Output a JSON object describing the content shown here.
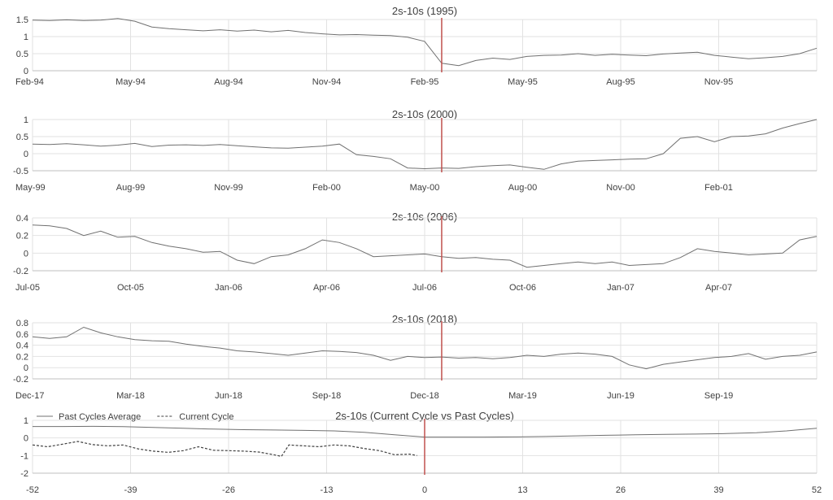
{
  "colors": {
    "series": "#707070",
    "current": "#404040",
    "grid": "#e2e2e2",
    "axis": "#bfbfbf",
    "marker": "#c0504d",
    "text": "#404040"
  },
  "chart_data": [
    {
      "type": "line",
      "title": "2s-10s (1995)",
      "x_ticks": [
        "Feb-94",
        "May-94",
        "Aug-94",
        "Nov-94",
        "Feb-95",
        "May-95",
        "Aug-95",
        "Nov-95"
      ],
      "x_range": [
        0,
        23
      ],
      "ylim": [
        0,
        1.5
      ],
      "y_ticks": [
        "0",
        "0.5",
        "1",
        "1.5"
      ],
      "y_tick_values": [
        0,
        0.5,
        1,
        1.5
      ],
      "grid": true,
      "marker_x": 12,
      "series": [
        {
          "x": [
            0,
            0.5,
            1,
            1.5,
            2,
            2.5,
            3,
            3.5,
            4,
            4.5,
            5,
            5.5,
            6,
            6.5,
            7,
            7.5,
            8,
            8.5,
            9,
            9.5,
            10,
            10.5,
            11,
            11.5,
            12,
            12.5,
            13,
            13.5,
            14,
            14.5,
            15,
            15.5,
            16,
            16.5,
            17,
            17.5,
            18,
            18.5,
            19,
            19.5,
            20,
            20.5,
            21,
            21.5,
            22,
            22.5,
            23
          ],
          "y": [
            1.48,
            1.47,
            1.49,
            1.47,
            1.48,
            1.53,
            1.45,
            1.28,
            1.23,
            1.2,
            1.17,
            1.2,
            1.16,
            1.19,
            1.14,
            1.18,
            1.12,
            1.08,
            1.05,
            1.06,
            1.04,
            1.03,
            0.98,
            0.86,
            0.22,
            0.15,
            0.3,
            0.37,
            0.33,
            0.42,
            0.45,
            0.46,
            0.5,
            0.45,
            0.48,
            0.46,
            0.44,
            0.49,
            0.52,
            0.54,
            0.45,
            0.4,
            0.35,
            0.38,
            0.42,
            0.5,
            0.66
          ]
        }
      ]
    },
    {
      "type": "line",
      "title": "2s-10s (2000)",
      "x_ticks": [
        "May-99",
        "Aug-99",
        "Nov-99",
        "Feb-00",
        "May-00",
        "Aug-00",
        "Nov-00",
        "Feb-01"
      ],
      "x_range": [
        0,
        23
      ],
      "ylim": [
        -0.5,
        1
      ],
      "y_ticks": [
        "-0.5",
        "0",
        "0.5",
        "1"
      ],
      "y_tick_values": [
        -0.5,
        0,
        0.5,
        1
      ],
      "grid": true,
      "marker_x": 12,
      "series": [
        {
          "x": [
            0,
            0.5,
            1,
            1.5,
            2,
            2.5,
            3,
            3.5,
            4,
            4.5,
            5,
            5.5,
            6,
            6.5,
            7,
            7.5,
            8,
            8.5,
            9,
            9.5,
            10,
            10.5,
            11,
            11.5,
            12,
            12.5,
            13,
            13.5,
            14,
            14.5,
            15,
            15.5,
            16,
            16.5,
            17,
            17.5,
            18,
            18.5,
            19,
            19.5,
            20,
            20.5,
            21,
            21.5,
            22,
            22.5,
            23
          ],
          "y": [
            0.28,
            0.27,
            0.29,
            0.26,
            0.22,
            0.25,
            0.3,
            0.21,
            0.25,
            0.26,
            0.24,
            0.27,
            0.23,
            0.2,
            0.17,
            0.16,
            0.19,
            0.22,
            0.28,
            -0.03,
            -0.08,
            -0.15,
            -0.42,
            -0.44,
            -0.42,
            -0.43,
            -0.38,
            -0.35,
            -0.33,
            -0.4,
            -0.46,
            -0.3,
            -0.22,
            -0.2,
            -0.18,
            -0.16,
            -0.15,
            0.0,
            0.45,
            0.5,
            0.35,
            0.5,
            0.52,
            0.58,
            0.75,
            0.88,
            1.0
          ]
        }
      ]
    },
    {
      "type": "line",
      "title": "2s-10s (2006)",
      "x_ticks": [
        "Jul-05",
        "Oct-05",
        "Jan-06",
        "Apr-06",
        "Jul-06",
        "Oct-06",
        "Jan-07",
        "Apr-07"
      ],
      "x_range": [
        0,
        23
      ],
      "ylim": [
        -0.2,
        0.4
      ],
      "y_ticks": [
        "-0.2",
        "0",
        "0.2",
        "0.4"
      ],
      "y_tick_values": [
        -0.2,
        0,
        0.2,
        0.4
      ],
      "grid": true,
      "marker_x": 12,
      "series": [
        {
          "x": [
            0,
            0.5,
            1,
            1.5,
            2,
            2.5,
            3,
            3.5,
            4,
            4.5,
            5,
            5.5,
            6,
            6.5,
            7,
            7.5,
            8,
            8.5,
            9,
            9.5,
            10,
            10.5,
            11,
            11.5,
            12,
            12.5,
            13,
            13.5,
            14,
            14.5,
            15,
            15.5,
            16,
            16.5,
            17,
            17.5,
            18,
            18.5,
            19,
            19.5,
            20,
            20.5,
            21,
            21.5,
            22,
            22.5,
            23
          ],
          "y": [
            0.32,
            0.31,
            0.28,
            0.2,
            0.25,
            0.18,
            0.19,
            0.12,
            0.08,
            0.05,
            0.01,
            0.02,
            -0.08,
            -0.12,
            -0.04,
            -0.02,
            0.05,
            0.15,
            0.12,
            0.05,
            -0.04,
            -0.03,
            -0.02,
            -0.01,
            -0.04,
            -0.06,
            -0.05,
            -0.07,
            -0.08,
            -0.16,
            -0.14,
            -0.12,
            -0.1,
            -0.12,
            -0.1,
            -0.14,
            -0.13,
            -0.12,
            -0.05,
            0.05,
            0.02,
            0.0,
            -0.02,
            -0.01,
            0.0,
            0.15,
            0.19
          ]
        }
      ]
    },
    {
      "type": "line",
      "title": "2s-10s (2018)",
      "x_ticks": [
        "Dec-17",
        "Mar-18",
        "Jun-18",
        "Sep-18",
        "Dec-18",
        "Mar-19",
        "Jun-19",
        "Sep-19"
      ],
      "x_range": [
        0,
        23
      ],
      "ylim": [
        -0.2,
        0.8
      ],
      "y_ticks": [
        "-0.2",
        "0",
        "0.2",
        "0.4",
        "0.6",
        "0.8"
      ],
      "y_tick_values": [
        -0.2,
        0,
        0.2,
        0.4,
        0.6,
        0.8
      ],
      "grid": true,
      "marker_x": 12,
      "series": [
        {
          "x": [
            0,
            0.5,
            1,
            1.5,
            2,
            2.5,
            3,
            3.5,
            4,
            4.5,
            5,
            5.5,
            6,
            6.5,
            7,
            7.5,
            8,
            8.5,
            9,
            9.5,
            10,
            10.5,
            11,
            11.5,
            12,
            12.5,
            13,
            13.5,
            14,
            14.5,
            15,
            15.5,
            16,
            16.5,
            17,
            17.5,
            18,
            18.5,
            19,
            19.5,
            20,
            20.5,
            21,
            21.5,
            22,
            22.5,
            23
          ],
          "y": [
            0.55,
            0.52,
            0.55,
            0.72,
            0.62,
            0.55,
            0.5,
            0.48,
            0.47,
            0.42,
            0.38,
            0.35,
            0.3,
            0.28,
            0.25,
            0.22,
            0.26,
            0.3,
            0.29,
            0.27,
            0.22,
            0.13,
            0.2,
            0.18,
            0.19,
            0.17,
            0.18,
            0.16,
            0.18,
            0.22,
            0.2,
            0.24,
            0.26,
            0.24,
            0.2,
            0.05,
            -0.02,
            0.06,
            0.1,
            0.14,
            0.18,
            0.2,
            0.25,
            0.15,
            0.2,
            0.22,
            0.28
          ]
        }
      ]
    },
    {
      "type": "line",
      "title": "2s-10s (Current Cycle vs Past Cycles)",
      "x_ticks": [
        "-52",
        "-39",
        "-26",
        "-13",
        "0",
        "13",
        "26",
        "39",
        "52"
      ],
      "x_tick_values": [
        -52,
        -39,
        -26,
        -13,
        0,
        13,
        26,
        39,
        52
      ],
      "x_range": [
        -52,
        52
      ],
      "ylim": [
        -2,
        1
      ],
      "y_ticks": [
        "-2",
        "-1",
        "0",
        "1"
      ],
      "y_tick_values": [
        -2,
        -1,
        0,
        1
      ],
      "grid": true,
      "marker_x": 0,
      "legend": "top-left",
      "series": [
        {
          "name": "Past Cycles Average",
          "style": "solid",
          "x": [
            -52,
            -48,
            -44,
            -40,
            -36,
            -32,
            -28,
            -24,
            -20,
            -16,
            -12,
            -8,
            -4,
            0,
            4,
            8,
            12,
            16,
            20,
            24,
            28,
            32,
            36,
            40,
            44,
            48,
            52
          ],
          "y": [
            0.65,
            0.65,
            0.66,
            0.64,
            0.6,
            0.55,
            0.5,
            0.47,
            0.45,
            0.43,
            0.4,
            0.32,
            0.18,
            0.05,
            0.05,
            0.05,
            0.06,
            0.08,
            0.12,
            0.15,
            0.18,
            0.2,
            0.22,
            0.25,
            0.3,
            0.4,
            0.55
          ]
        },
        {
          "name": "Current Cycle",
          "style": "dashed",
          "x": [
            -52,
            -50,
            -48,
            -46,
            -44,
            -42,
            -40,
            -38,
            -36,
            -34,
            -32,
            -30,
            -28,
            -26,
            -24,
            -22,
            -20,
            -19,
            -18,
            -16,
            -14,
            -12,
            -10,
            -8,
            -6,
            -4,
            -2,
            -1
          ],
          "y": [
            -0.4,
            -0.5,
            -0.35,
            -0.2,
            -0.38,
            -0.45,
            -0.4,
            -0.62,
            -0.75,
            -0.82,
            -0.72,
            -0.5,
            -0.7,
            -0.72,
            -0.75,
            -0.8,
            -0.95,
            -1.05,
            -0.4,
            -0.45,
            -0.5,
            -0.4,
            -0.45,
            -0.6,
            -0.72,
            -0.95,
            -0.92,
            -1.0
          ]
        }
      ]
    }
  ]
}
